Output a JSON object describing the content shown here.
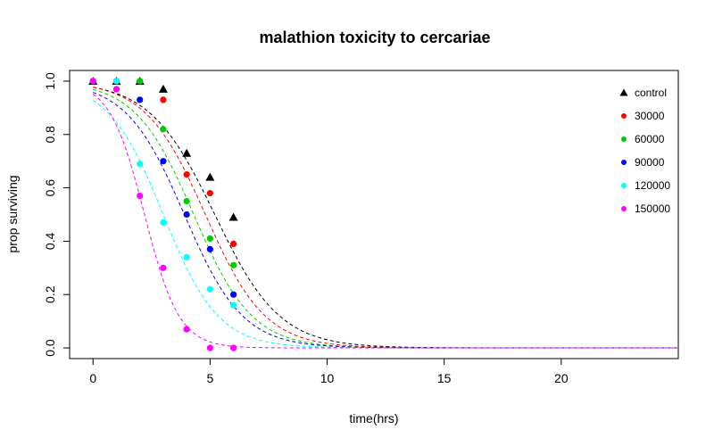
{
  "chart_data": {
    "type": "scatter",
    "title": "malathion toxicity to cercariae",
    "xlabel": "time(hrs)",
    "ylabel": "prop surviving",
    "xlim": [
      -1,
      25
    ],
    "ylim": [
      -0.04,
      1.04
    ],
    "xticks": [
      0,
      5,
      10,
      15,
      20
    ],
    "yticks": [
      0.0,
      0.2,
      0.4,
      0.6,
      0.8,
      1.0
    ],
    "xtick_labels": [
      "0",
      "5",
      "10",
      "15",
      "20"
    ],
    "ytick_labels": [
      "0.0",
      "0.2",
      "0.4",
      "0.6",
      "0.8",
      "1.0"
    ],
    "legend_position": "top-right",
    "series": [
      {
        "name": "control",
        "color": "#000000",
        "marker": "triangle",
        "points": [
          [
            0,
            1.0
          ],
          [
            1,
            1.0
          ],
          [
            2,
            1.0
          ],
          [
            3,
            0.97
          ],
          [
            4,
            0.73
          ],
          [
            5,
            0.64
          ],
          [
            6,
            0.49
          ]
        ],
        "fit": {
          "t50": 5.2,
          "steepness": 0.72
        }
      },
      {
        "name": "30000",
        "color": "#ff0000",
        "marker": "circle",
        "points": [
          [
            0,
            1.0
          ],
          [
            1,
            1.0
          ],
          [
            2,
            1.0
          ],
          [
            3,
            0.93
          ],
          [
            4,
            0.65
          ],
          [
            5,
            0.58
          ],
          [
            6,
            0.39
          ]
        ],
        "fit": {
          "t50": 4.8,
          "steepness": 0.78
        }
      },
      {
        "name": "60000",
        "color": "#00cd00",
        "marker": "circle",
        "points": [
          [
            0,
            1.0
          ],
          [
            1,
            1.0
          ],
          [
            2,
            1.0
          ],
          [
            3,
            0.82
          ],
          [
            4,
            0.55
          ],
          [
            5,
            0.41
          ],
          [
            6,
            0.31
          ]
        ],
        "fit": {
          "t50": 4.3,
          "steepness": 0.8
        }
      },
      {
        "name": "90000",
        "color": "#0000ff",
        "marker": "circle",
        "points": [
          [
            0,
            1.0
          ],
          [
            1,
            1.0
          ],
          [
            2,
            0.93
          ],
          [
            3,
            0.7
          ],
          [
            4,
            0.5
          ],
          [
            5,
            0.37
          ],
          [
            6,
            0.2
          ]
        ],
        "fit": {
          "t50": 3.9,
          "steepness": 0.8
        }
      },
      {
        "name": "120000",
        "color": "#00ffff",
        "marker": "circle",
        "points": [
          [
            0,
            1.0
          ],
          [
            1,
            1.0
          ],
          [
            2,
            0.69
          ],
          [
            3,
            0.47
          ],
          [
            4,
            0.34
          ],
          [
            5,
            0.22
          ],
          [
            6,
            0.16
          ]
        ],
        "fit": {
          "t50": 3.0,
          "steepness": 0.85
        }
      },
      {
        "name": "150000",
        "color": "#ff00ff",
        "marker": "circle",
        "points": [
          [
            0,
            1.0
          ],
          [
            1,
            0.97
          ],
          [
            2,
            0.57
          ],
          [
            3,
            0.3
          ],
          [
            4,
            0.07
          ],
          [
            5,
            0.0
          ],
          [
            6,
            0.0
          ]
        ],
        "fit": {
          "t50": 2.2,
          "steepness": 1.35
        }
      }
    ]
  }
}
